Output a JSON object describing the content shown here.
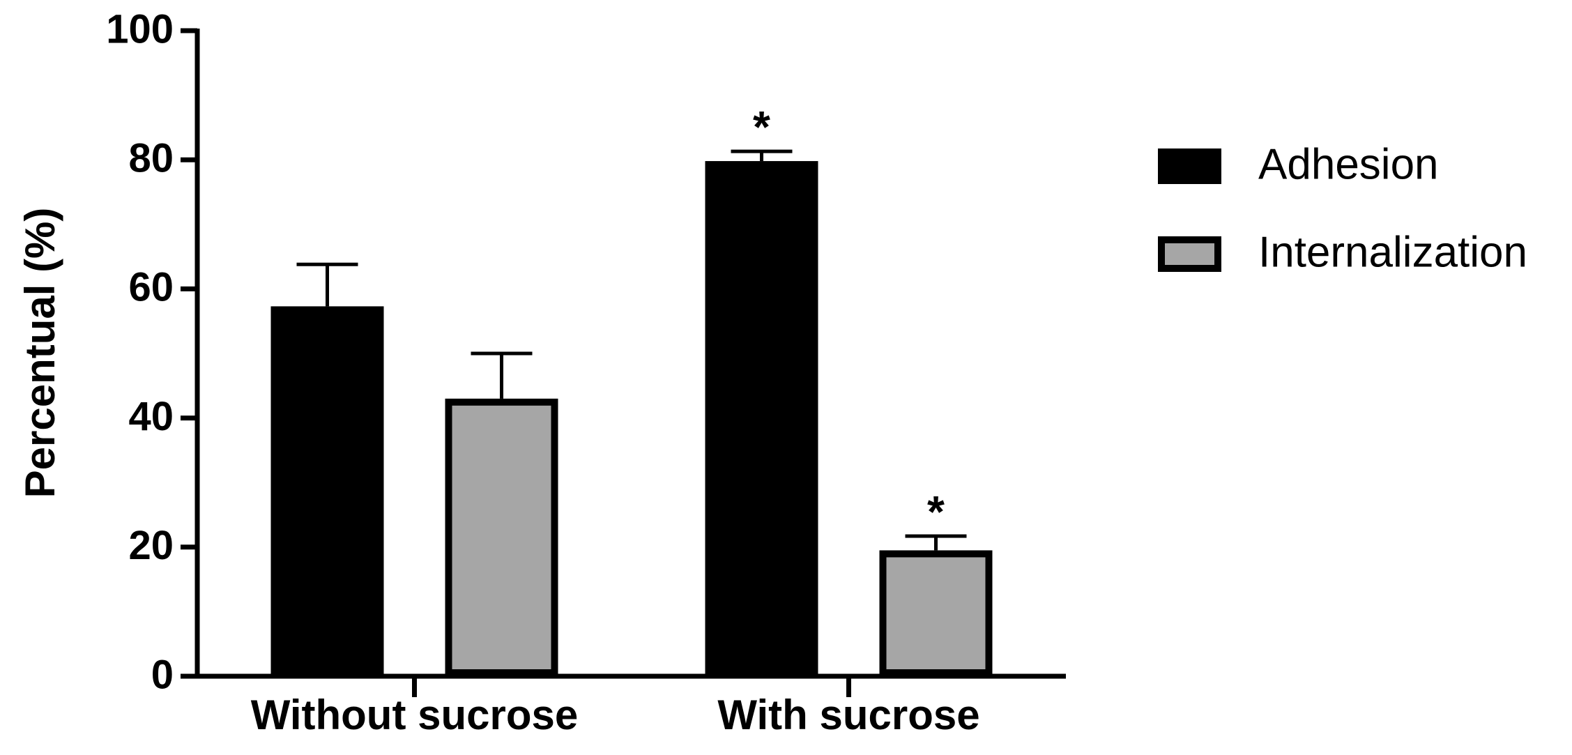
{
  "chart_data": {
    "type": "bar",
    "y_label": "Percentual (%)",
    "categories": [
      "Without sucrose",
      "With sucrose"
    ],
    "series": [
      {
        "name": "Adhesion",
        "color": "#000000",
        "values": [
          57.3,
          79.8
        ],
        "errors": [
          6.5,
          1.5
        ],
        "markers": [
          null,
          "*"
        ]
      },
      {
        "name": "Internalization",
        "color": "#a6a6a6",
        "values": [
          43,
          19.5
        ],
        "errors": [
          7,
          2.2
        ],
        "markers": [
          null,
          "*"
        ]
      }
    ],
    "ylim": [
      0,
      100
    ],
    "yticks": [
      0,
      20,
      40,
      60,
      80,
      100
    ],
    "legend": "right"
  }
}
